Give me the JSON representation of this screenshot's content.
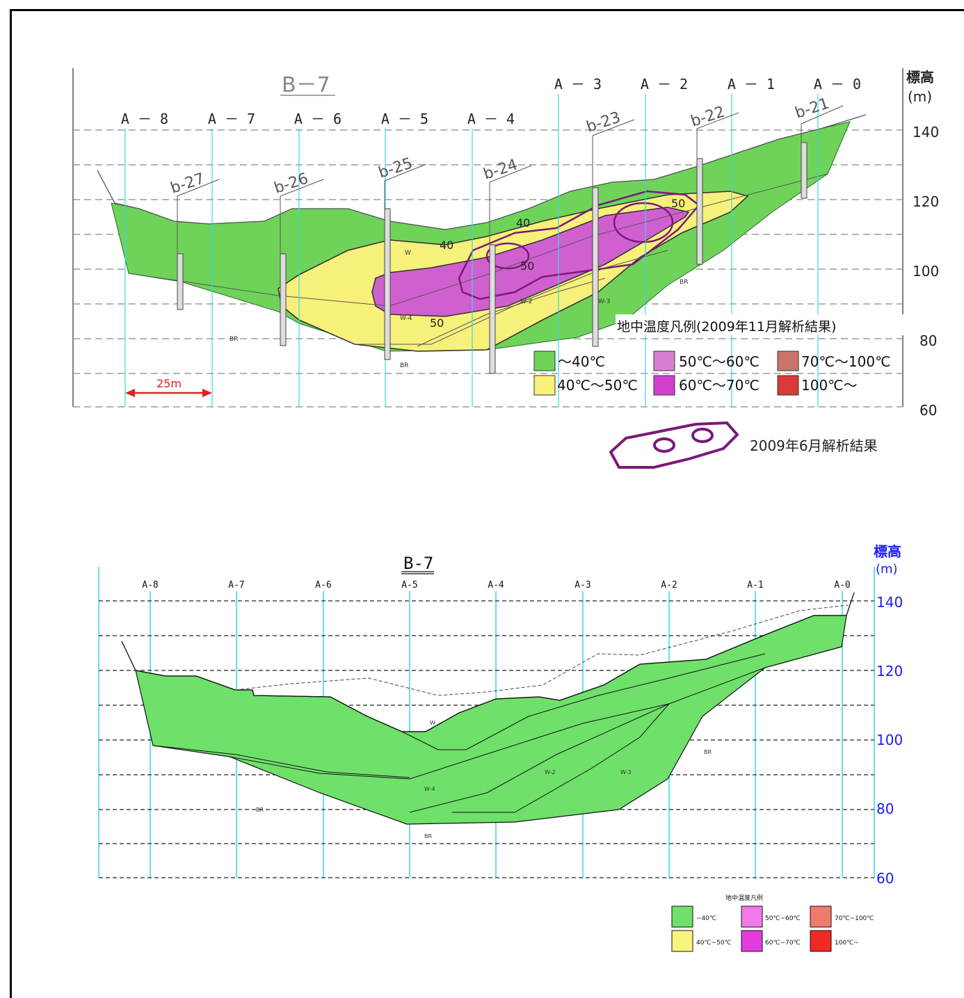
{
  "top": {
    "section_title": "B－7",
    "elev_label_1": "標高",
    "elev_label_2": "(m)",
    "columns": [
      "A － 8",
      "A － 7",
      "A － 6",
      "A － 5",
      "A － 4",
      "A － 3",
      "A － 2",
      "A － 1",
      "A － 0"
    ],
    "boreholes": [
      "b-27",
      "b-26",
      "b-25",
      "b-24",
      "b-23",
      "b-22",
      "b-21"
    ],
    "elevations": [
      "140",
      "120",
      "100",
      "80",
      "60"
    ],
    "scale_label": "25m",
    "contours": {
      "c40a": "40",
      "c40b": "40",
      "c50a": "50",
      "c50b": "50",
      "c50c": "50"
    },
    "units": {
      "br1": "BR",
      "br2": "BR",
      "br3": "BR",
      "w1": "W",
      "w2": "W-2",
      "w3": "W-3",
      "w4": "W-4"
    },
    "legend_title": "地中温度凡例(2009年11月解析結果)",
    "legend": [
      {
        "label": "～40℃",
        "color": "#6fd35a"
      },
      {
        "label": "40℃～50℃",
        "color": "#f7f07a"
      },
      {
        "label": "50℃～60℃",
        "color": "#d77fd0"
      },
      {
        "label": "60℃～70℃",
        "color": "#d13fcf"
      },
      {
        "label": "70℃～100℃",
        "color": "#c8746c"
      },
      {
        "label": "100℃～",
        "color": "#d93a35"
      }
    ],
    "june_label": "2009年6月解析結果"
  },
  "bottom": {
    "section_title": "B-7",
    "elev_label_1": "標高",
    "elev_label_2": "(m)",
    "columns": [
      "A-8",
      "A-7",
      "A-6",
      "A-5",
      "A-4",
      "A-3",
      "A-2",
      "A-1",
      "A-0"
    ],
    "elevations": [
      "140",
      "120",
      "100",
      "80",
      "60"
    ],
    "units": {
      "w1": "W",
      "w2": "W-2",
      "w3": "W-3",
      "w4": "W-4",
      "br1": "BR",
      "br2": "BR",
      "br3": "BR"
    },
    "legend_title": "地中温度凡例",
    "legend": [
      {
        "label": "~40℃",
        "color": "#6fe06a"
      },
      {
        "label": "40℃~50℃",
        "color": "#fbf47a"
      },
      {
        "label": "50℃~60℃",
        "color": "#f27ae8"
      },
      {
        "label": "60℃~70℃",
        "color": "#e43be0"
      },
      {
        "label": "70℃~100℃",
        "color": "#f07a6c"
      },
      {
        "label": "100℃~",
        "color": "#ee2a22"
      }
    ]
  },
  "colors": {
    "green": "#6fd35a",
    "yellow": "#f7f07a",
    "purple": "#c94fcf",
    "outline": "#7a1a7a",
    "cyan": "#33d8e8",
    "axis_blue": "#1a1aff"
  }
}
